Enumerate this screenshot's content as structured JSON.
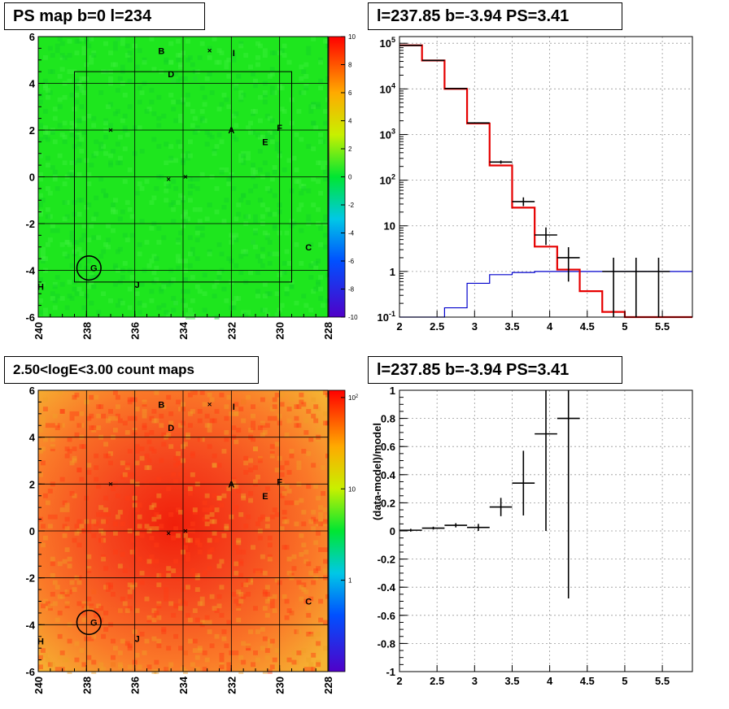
{
  "chart_data": [
    {
      "id": "ps_map",
      "type": "heatmap",
      "title": "PS map b=0 l=234",
      "x_ticks": [
        "240",
        "238",
        "236",
        "234",
        "232",
        "230",
        "228"
      ],
      "y_ticks": [
        "6",
        "4",
        "2",
        "0",
        "-2",
        "-4",
        "-6"
      ],
      "xlim": [
        240,
        228
      ],
      "ylim": [
        -6,
        6
      ],
      "colorbar_ticks": [
        "10",
        "8",
        "6",
        "4",
        "2",
        "0",
        "-2",
        "-4",
        "-6",
        "-8",
        "-10"
      ],
      "colorbar_range": [
        -10,
        10
      ],
      "field_value": 0,
      "sources": [
        {
          "label": "A",
          "l": 232,
          "b": 2
        },
        {
          "label": "B",
          "l": 234.9,
          "b": 5.4
        },
        {
          "label": "C",
          "l": 228.8,
          "b": -3.0
        },
        {
          "label": "D",
          "l": 234.5,
          "b": 4.4
        },
        {
          "label": "E",
          "l": 230.6,
          "b": 1.5
        },
        {
          "label": "F",
          "l": 230.0,
          "b": 2.1
        },
        {
          "label": "G",
          "l": 237.7,
          "b": -3.9
        },
        {
          "label": "H",
          "l": 239.9,
          "b": -4.7
        },
        {
          "label": "I",
          "l": 231.9,
          "b": 5.3
        },
        {
          "label": "J",
          "l": 235.9,
          "b": -4.6
        }
      ],
      "markers": [
        {
          "l": 237.0,
          "b": 2.0
        },
        {
          "l": 234.6,
          "b": -0.1
        },
        {
          "l": 233.9,
          "b": 0
        },
        {
          "l": 232.9,
          "b": 5.4
        }
      ],
      "circle": {
        "l": 237.9,
        "b": -3.9,
        "r": 0.5
      }
    },
    {
      "id": "spectrum",
      "type": "line",
      "title": "l=237.85 b=-3.94 PS=3.41",
      "x_ticks": [
        "2",
        "2.5",
        "3",
        "3.5",
        "4",
        "4.5",
        "5",
        "5.5"
      ],
      "y_ticks": [
        "10^5",
        "10^4",
        "10^3",
        "10^2",
        "10",
        "1",
        "10^-1"
      ],
      "xlim": [
        2,
        5.9
      ],
      "ylim": [
        0.1,
        140000
      ],
      "ylog": true,
      "grid": true,
      "bin_edges": [
        2.0,
        2.3,
        2.6,
        2.9,
        3.2,
        3.5,
        3.8,
        4.1,
        4.4,
        4.7,
        5.0,
        5.3,
        5.6,
        5.9
      ],
      "model_total": [
        90000,
        42000,
        10000,
        1750,
        210,
        25,
        3.5,
        1.1,
        0.37,
        0.13,
        0.1,
        0.1,
        0.1
      ],
      "model_source": [
        0.01,
        0.01,
        0.16,
        0.55,
        0.85,
        0.95,
        1.0,
        1.0,
        1.0,
        1.0,
        1.0,
        1.0,
        1.0
      ],
      "data": [
        {
          "x": 2.15,
          "y": 90000,
          "ylo": 89000,
          "yhi": 91000
        },
        {
          "x": 2.45,
          "y": 42000,
          "ylo": 41500,
          "yhi": 42500
        },
        {
          "x": 2.75,
          "y": 10200,
          "ylo": 10000,
          "yhi": 10400
        },
        {
          "x": 3.05,
          "y": 1800,
          "ylo": 1750,
          "yhi": 1850
        },
        {
          "x": 3.35,
          "y": 250,
          "ylo": 230,
          "yhi": 270
        },
        {
          "x": 3.65,
          "y": 34,
          "ylo": 27,
          "yhi": 42
        },
        {
          "x": 3.95,
          "y": 6.3,
          "ylo": 3.8,
          "yhi": 9.2
        },
        {
          "x": 4.25,
          "y": 2.0,
          "ylo": 0.6,
          "yhi": 3.4
        },
        {
          "x": 4.85,
          "y": 1.0,
          "ylo": 0.1,
          "yhi": 2.0
        },
        {
          "x": 5.15,
          "y": 1.0,
          "ylo": 0.1,
          "yhi": 2.0
        },
        {
          "x": 5.45,
          "y": 1.0,
          "ylo": 0.1,
          "yhi": 2.0
        }
      ]
    },
    {
      "id": "count_map",
      "type": "heatmap",
      "title": "2.50<logE<3.00 count maps",
      "x_ticks": [
        "240",
        "238",
        "236",
        "234",
        "232",
        "230",
        "228"
      ],
      "y_ticks": [
        "6",
        "4",
        "2",
        "0",
        "-2",
        "-4",
        "-6"
      ],
      "xlim": [
        240,
        228
      ],
      "ylim": [
        -6,
        6
      ],
      "colorbar_ticks": [
        "10^2",
        "10",
        "1"
      ],
      "colorbar_log": true,
      "colorbar_range": [
        0.1,
        120
      ],
      "peak": {
        "l": 233.5,
        "b": 0.5
      },
      "sources": [
        {
          "label": "A",
          "l": 232,
          "b": 2
        },
        {
          "label": "B",
          "l": 234.9,
          "b": 5.4
        },
        {
          "label": "C",
          "l": 228.8,
          "b": -3.0
        },
        {
          "label": "D",
          "l": 234.5,
          "b": 4.4
        },
        {
          "label": "E",
          "l": 230.6,
          "b": 1.5
        },
        {
          "label": "F",
          "l": 230.0,
          "b": 2.1
        },
        {
          "label": "G",
          "l": 237.7,
          "b": -3.9
        },
        {
          "label": "H",
          "l": 239.9,
          "b": -4.7
        },
        {
          "label": "I",
          "l": 231.9,
          "b": 5.3
        },
        {
          "label": "J",
          "l": 235.9,
          "b": -4.6
        }
      ],
      "markers": [
        {
          "l": 237.0,
          "b": 2.0
        },
        {
          "l": 234.6,
          "b": -0.1
        },
        {
          "l": 233.9,
          "b": 0
        },
        {
          "l": 232.9,
          "b": 5.4
        }
      ],
      "circle": {
        "l": 237.9,
        "b": -3.9,
        "r": 0.5
      }
    },
    {
      "id": "residual",
      "type": "scatter",
      "title": "l=237.85 b=-3.94 PS=3.41",
      "ylabel": "(data-model)/model",
      "x_ticks": [
        "2",
        "2.5",
        "3",
        "3.5",
        "4",
        "4.5",
        "5",
        "5.5"
      ],
      "y_ticks": [
        "1",
        "0.8",
        "0.6",
        "0.4",
        "0.2",
        "0",
        "-0.2",
        "-0.4",
        "-0.6",
        "-0.8",
        "-1"
      ],
      "xlim": [
        2,
        5.9
      ],
      "ylim": [
        -1,
        1
      ],
      "grid": true,
      "data": [
        {
          "x": 2.15,
          "y": 0.005,
          "ylo": -0.005,
          "yhi": 0.015,
          "xw": 0.15
        },
        {
          "x": 2.45,
          "y": 0.02,
          "ylo": 0.01,
          "yhi": 0.03,
          "xw": 0.15
        },
        {
          "x": 2.75,
          "y": 0.04,
          "ylo": 0.025,
          "yhi": 0.055,
          "xw": 0.15
        },
        {
          "x": 3.05,
          "y": 0.025,
          "ylo": 0.0,
          "yhi": 0.05,
          "xw": 0.15
        },
        {
          "x": 3.35,
          "y": 0.17,
          "ylo": 0.105,
          "yhi": 0.235,
          "xw": 0.15
        },
        {
          "x": 3.65,
          "y": 0.34,
          "ylo": 0.11,
          "yhi": 0.57,
          "xw": 0.15
        },
        {
          "x": 3.95,
          "y": 0.69,
          "ylo": 0.0,
          "yhi": 1.0,
          "xw": 0.15
        },
        {
          "x": 4.25,
          "y": 0.8,
          "ylo": -0.48,
          "yhi": 1.0,
          "xw": 0.15
        }
      ]
    }
  ]
}
